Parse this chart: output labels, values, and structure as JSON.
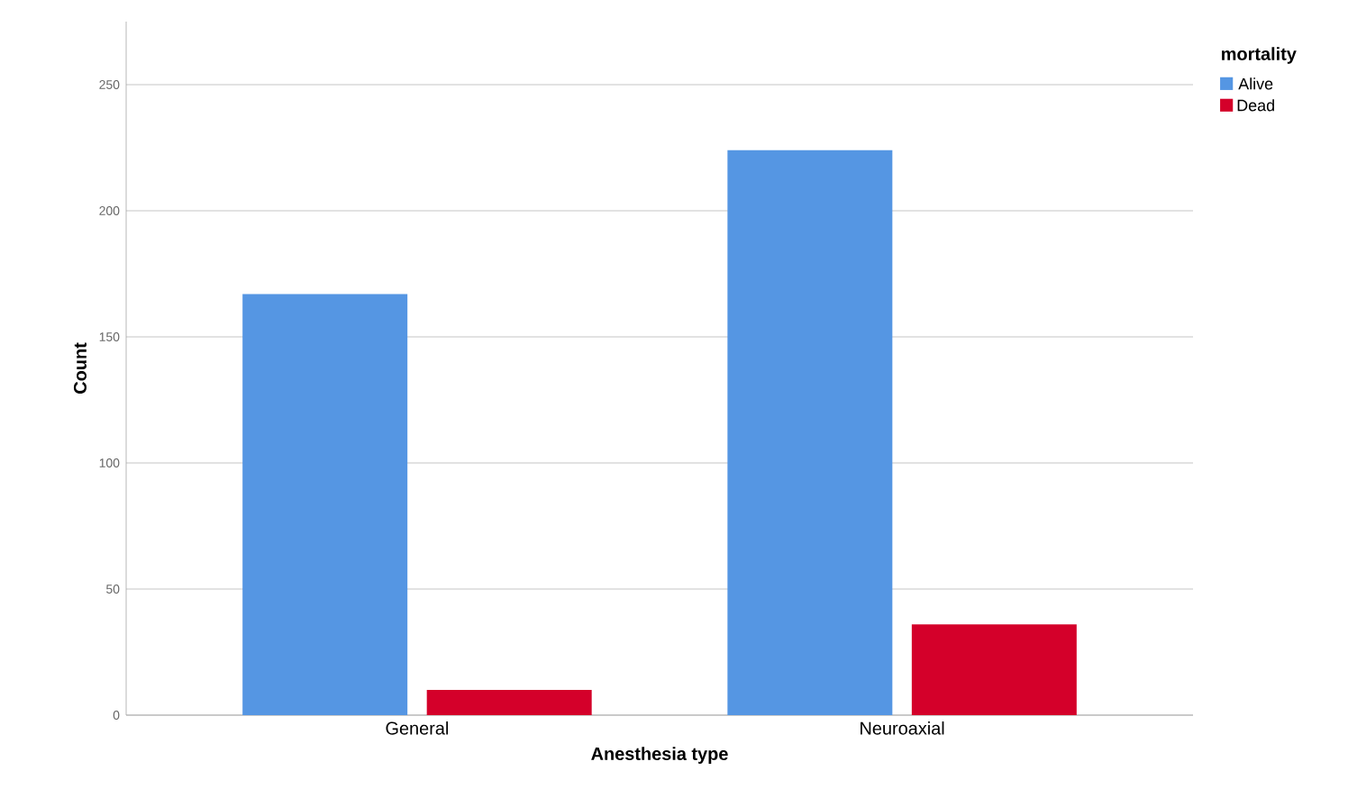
{
  "chart_data": {
    "type": "bar",
    "xlabel": "Anesthesia type",
    "ylabel": "Count",
    "legend_title": "mortality",
    "categories": [
      "General",
      "Neuroaxial"
    ],
    "series": [
      {
        "name": "Alive",
        "color": "#5596e3",
        "values": [
          167,
          224
        ]
      },
      {
        "name": "Dead",
        "color": "#d4002a",
        "values": [
          10,
          36
        ]
      }
    ],
    "ylim": [
      0,
      275
    ],
    "yticks": [
      0,
      50,
      100,
      150,
      200,
      250
    ],
    "grid": "y",
    "legend": "top right"
  }
}
